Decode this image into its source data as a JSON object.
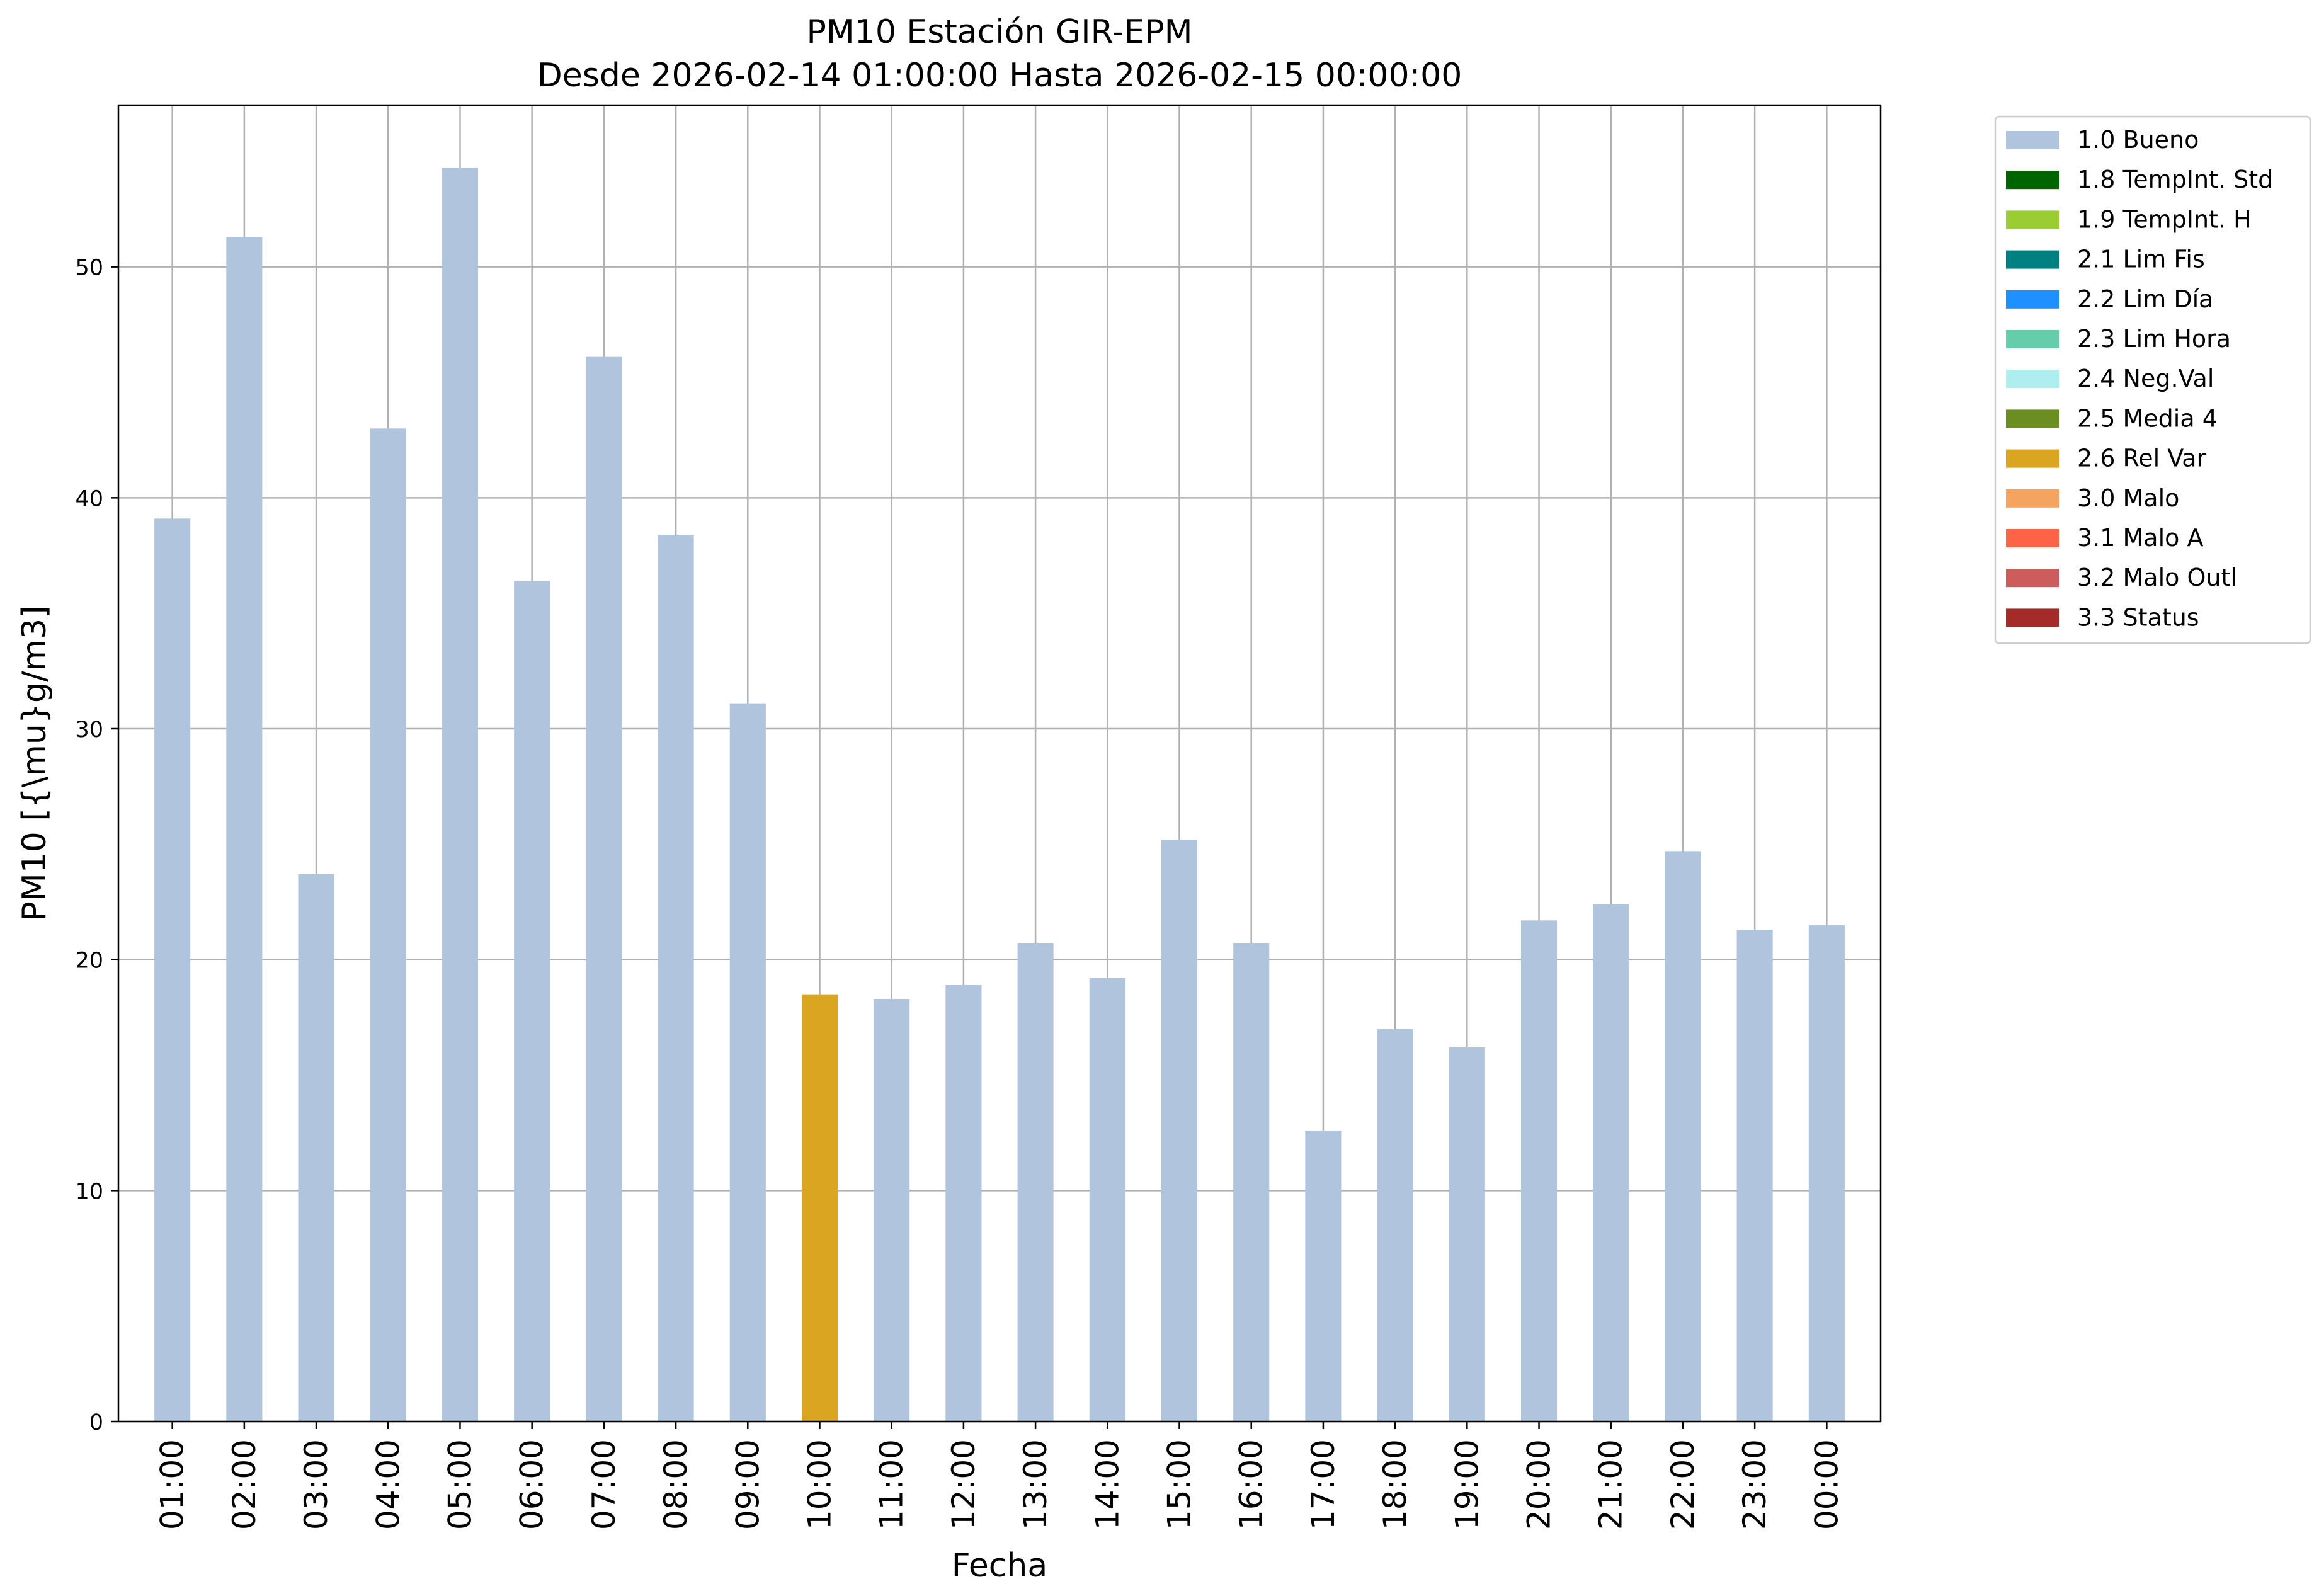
{
  "chart_data": {
    "type": "bar",
    "title": "PM10 Estación GIR-EPM",
    "subtitle": "Desde 2026-02-14 01:00:00 Hasta 2026-02-15 00:00:00",
    "xlabel": "Fecha",
    "ylabel": "PM10 [{\\mu}g/m3]",
    "ylim": [
      0,
      57
    ],
    "yticks": [
      0,
      10,
      20,
      30,
      40,
      50
    ],
    "grid": true,
    "legend_position": "outside-top-right",
    "categories": [
      "01:00",
      "02:00",
      "03:00",
      "04:00",
      "05:00",
      "06:00",
      "07:00",
      "08:00",
      "09:00",
      "10:00",
      "11:00",
      "12:00",
      "13:00",
      "14:00",
      "15:00",
      "16:00",
      "17:00",
      "18:00",
      "19:00",
      "20:00",
      "21:00",
      "22:00",
      "23:00",
      "00:00"
    ],
    "values": [
      39.1,
      51.3,
      23.7,
      43.0,
      54.3,
      36.4,
      46.1,
      38.4,
      31.1,
      18.5,
      18.3,
      18.9,
      20.7,
      19.2,
      25.2,
      20.7,
      12.6,
      17.0,
      16.2,
      21.7,
      22.4,
      24.7,
      21.3,
      21.5
    ],
    "flags": [
      "1.0 Bueno",
      "1.0 Bueno",
      "1.0 Bueno",
      "1.0 Bueno",
      "1.0 Bueno",
      "1.0 Bueno",
      "1.0 Bueno",
      "1.0 Bueno",
      "1.0 Bueno",
      "2.6 Rel Var",
      "1.0 Bueno",
      "1.0 Bueno",
      "1.0 Bueno",
      "1.0 Bueno",
      "1.0 Bueno",
      "1.0 Bueno",
      "1.0 Bueno",
      "1.0 Bueno",
      "1.0 Bueno",
      "1.0 Bueno",
      "1.0 Bueno",
      "1.0 Bueno",
      "1.0 Bueno",
      "1.0 Bueno"
    ],
    "legend": [
      {
        "label": "1.0 Bueno",
        "color": "#b0c4de"
      },
      {
        "label": "1.8 TempInt. Std",
        "color": "#006400"
      },
      {
        "label": "1.9 TempInt. H",
        "color": "#9acd32"
      },
      {
        "label": "2.1 Lim Fis",
        "color": "#008080"
      },
      {
        "label": "2.2 Lim Día",
        "color": "#1e90ff"
      },
      {
        "label": "2.3 Lim Hora",
        "color": "#66cdaa"
      },
      {
        "label": "2.4 Neg.Val",
        "color": "#afeeee"
      },
      {
        "label": "2.5 Media 4",
        "color": "#6b8e23"
      },
      {
        "label": "2.6 Rel Var",
        "color": "#daa520"
      },
      {
        "label": "3.0 Malo",
        "color": "#f4a460"
      },
      {
        "label": "3.1 Malo A",
        "color": "#ff6347"
      },
      {
        "label": "3.2 Malo Outl",
        "color": "#cd5c5c"
      },
      {
        "label": "3.3 Status",
        "color": "#a52a2a"
      }
    ]
  }
}
